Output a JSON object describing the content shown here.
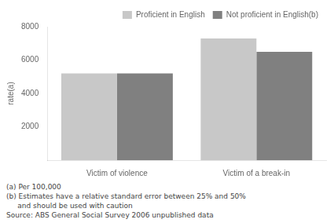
{
  "chart_data": {
    "type": "bar",
    "categories": [
      "Victim of violence",
      "Victim of a break-in"
    ],
    "series": [
      {
        "name": "Proficient in English",
        "color": "#c8c8c8",
        "values": [
          5200,
          7300
        ]
      },
      {
        "name": "Not proficient in English(b)",
        "color": "#808080",
        "values": [
          5200,
          6500
        ]
      }
    ],
    "ylabel": "rate(a)",
    "ylim": [
      0,
      8000
    ],
    "yticks": [
      2000,
      4000,
      6000,
      8000
    ],
    "grid": false,
    "legend": "upper right",
    "annotations": [
      "(a) Per 100,000",
      "(b) Estimates have a relative standard error between 25% and 50%",
      "     and should be used with caution",
      "Source: ABS General Social Survey 2006 unpublished data"
    ]
  }
}
